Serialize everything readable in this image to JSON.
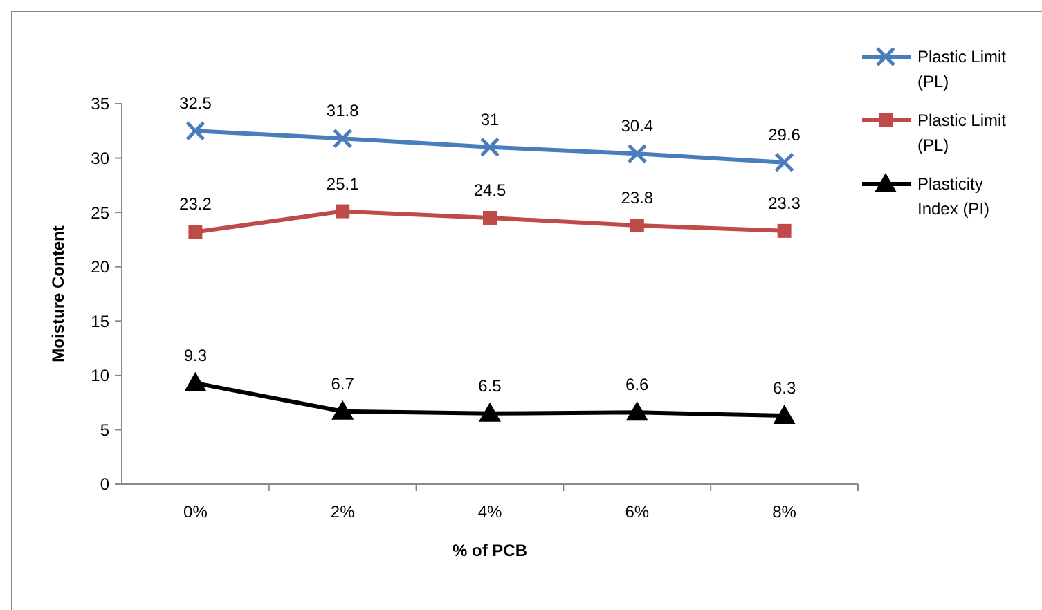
{
  "chart_data": {
    "type": "line",
    "xlabel": "% of PCB",
    "ylabel": "Moisture Content",
    "categories": [
      "0%",
      "2%",
      "4%",
      "6%",
      "8%"
    ],
    "series": [
      {
        "name": "Plastic Limit (PL)",
        "color": "#4a7ebb",
        "marker": "cross",
        "values": [
          32.5,
          31.8,
          31,
          30.4,
          29.6
        ]
      },
      {
        "name": "Plastic Limit (PL)",
        "color": "#be4b48",
        "marker": "square",
        "values": [
          23.2,
          25.1,
          24.5,
          23.8,
          23.3
        ]
      },
      {
        "name": "Plasticity Index (PI)",
        "color": "#000000",
        "marker": "triangle",
        "values": [
          9.3,
          6.7,
          6.5,
          6.6,
          6.3
        ]
      }
    ],
    "ylim": [
      0,
      35
    ],
    "yticks": [
      0,
      5,
      10,
      15,
      20,
      25,
      30,
      35
    ],
    "data_labels": true,
    "legend": "right",
    "grid": false
  }
}
